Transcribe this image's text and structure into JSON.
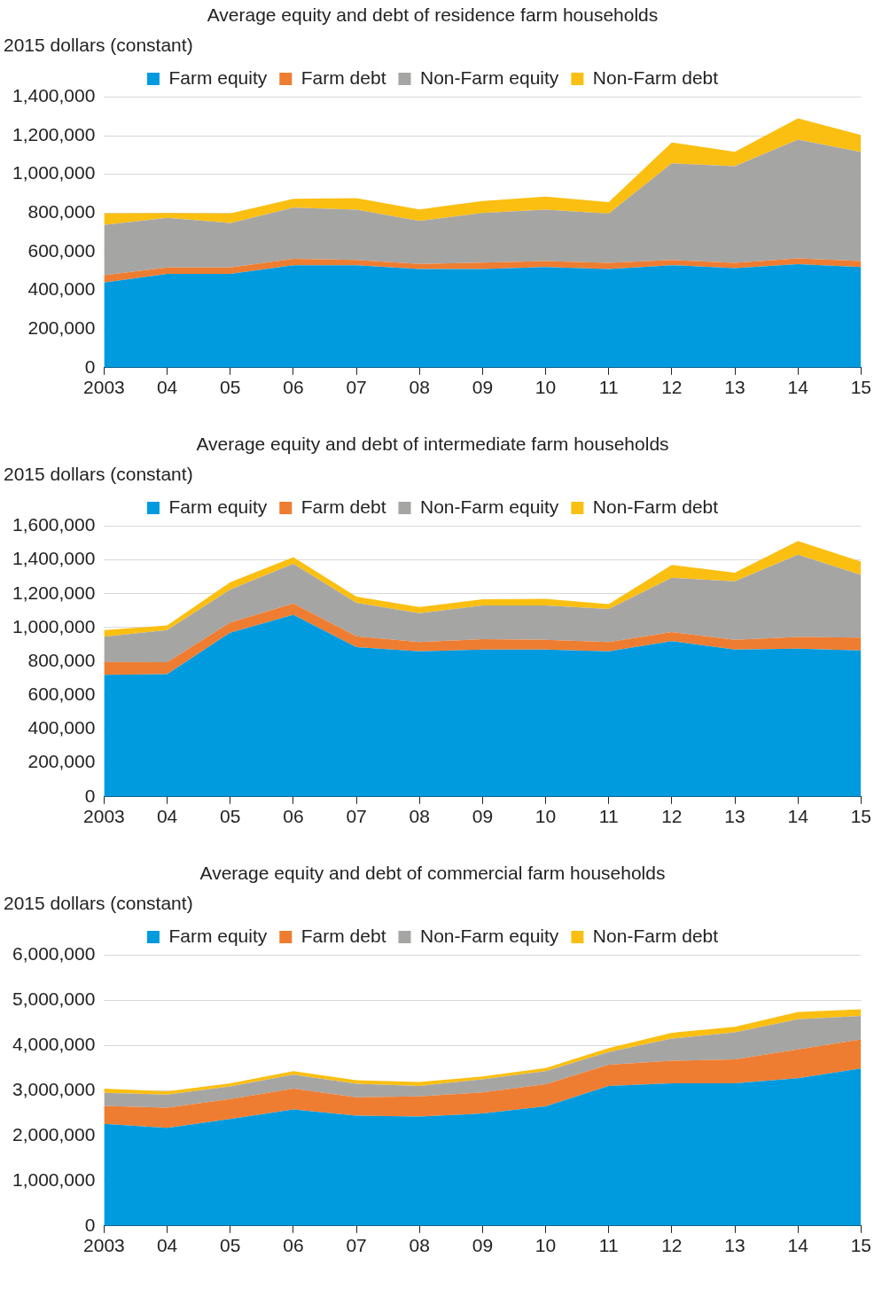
{
  "chart_data": [
    {
      "type": "area",
      "title": "Average equity and debt of residence farm households",
      "ylabel": "2015 dollars (constant)",
      "stacked": true,
      "legend": "top",
      "grid": "y",
      "categories": [
        "2003",
        "04",
        "05",
        "06",
        "07",
        "08",
        "09",
        "10",
        "11",
        "12",
        "13",
        "14",
        "15"
      ],
      "ylim": [
        0,
        1400000
      ],
      "yticks": [
        {
          "value": 0,
          "label": "0"
        },
        {
          "value": 200000,
          "label": "200,000"
        },
        {
          "value": 400000,
          "label": "400,000"
        },
        {
          "value": 600000,
          "label": "600,000"
        },
        {
          "value": 800000,
          "label": "800,000"
        },
        {
          "value": 1000000,
          "label": "1,000,000"
        },
        {
          "value": 1200000,
          "label": "1,200,000"
        },
        {
          "value": 1400000,
          "label": "1,400,000"
        }
      ],
      "series": [
        {
          "name": "Farm equity",
          "color": "#009ade",
          "values": [
            440000,
            485000,
            485000,
            530000,
            530000,
            510000,
            510000,
            520000,
            510000,
            530000,
            515000,
            535000,
            520000
          ]
        },
        {
          "name": "Farm debt",
          "color": "#ee7d31",
          "values": [
            38000,
            33000,
            33000,
            33000,
            27000,
            27000,
            33000,
            32000,
            32000,
            27000,
            27000,
            30000,
            32000
          ]
        },
        {
          "name": "Non-Farm equity",
          "color": "#a5a5a4",
          "values": [
            260000,
            257000,
            230000,
            265000,
            260000,
            222000,
            257000,
            265000,
            255000,
            500000,
            500000,
            615000,
            563000
          ]
        },
        {
          "name": "Non-Farm debt",
          "color": "#fbbf12",
          "values": [
            60000,
            25000,
            50000,
            46000,
            60000,
            60000,
            62000,
            68000,
            59000,
            108000,
            75000,
            109000,
            89000
          ]
        }
      ]
    },
    {
      "type": "area",
      "title": "Average equity and debt of intermediate farm households",
      "ylabel": "2015 dollars (constant)",
      "stacked": true,
      "legend": "top",
      "grid": "y",
      "categories": [
        "2003",
        "04",
        "05",
        "06",
        "07",
        "08",
        "09",
        "10",
        "11",
        "12",
        "13",
        "14",
        "15"
      ],
      "ylim": [
        0,
        1600000
      ],
      "yticks": [
        {
          "value": 0,
          "label": "0"
        },
        {
          "value": 200000,
          "label": "200,000"
        },
        {
          "value": 400000,
          "label": "400,000"
        },
        {
          "value": 600000,
          "label": "600,000"
        },
        {
          "value": 800000,
          "label": "800,000"
        },
        {
          "value": 1000000,
          "label": "1,000,000"
        },
        {
          "value": 1200000,
          "label": "1,200,000"
        },
        {
          "value": 1400000,
          "label": "1,400,000"
        },
        {
          "value": 1600000,
          "label": "1,600,000"
        }
      ],
      "series": [
        {
          "name": "Farm equity",
          "color": "#009ade",
          "values": [
            720000,
            725000,
            970000,
            1075000,
            885000,
            860000,
            870000,
            870000,
            860000,
            920000,
            870000,
            875000,
            865000
          ]
        },
        {
          "name": "Farm debt",
          "color": "#ee7d31",
          "values": [
            76000,
            70000,
            60000,
            67000,
            64000,
            55000,
            61000,
            58000,
            55000,
            54000,
            58000,
            70000,
            76000
          ]
        },
        {
          "name": "Non-Farm equity",
          "color": "#a5a5a4",
          "values": [
            150000,
            190000,
            195000,
            235000,
            197000,
            170000,
            200000,
            203000,
            194000,
            320000,
            346000,
            485000,
            370000
          ]
        },
        {
          "name": "Non-Farm debt",
          "color": "#fbbf12",
          "values": [
            39000,
            28000,
            43000,
            39000,
            37000,
            37000,
            36000,
            39000,
            30000,
            76000,
            51000,
            82000,
            79000
          ]
        }
      ]
    },
    {
      "type": "area",
      "title": "Average equity and debt of commercial farm households",
      "ylabel": "2015 dollars (constant)",
      "stacked": true,
      "legend": "top",
      "grid": "y",
      "categories": [
        "2003",
        "04",
        "05",
        "06",
        "07",
        "08",
        "09",
        "10",
        "11",
        "12",
        "13",
        "14",
        "15"
      ],
      "ylim": [
        0,
        6000000
      ],
      "yticks": [
        {
          "value": 0,
          "label": "0"
        },
        {
          "value": 1000000,
          "label": "1,000,000"
        },
        {
          "value": 2000000,
          "label": "2,000,000"
        },
        {
          "value": 3000000,
          "label": "3,000,000"
        },
        {
          "value": 4000000,
          "label": "4,000,000"
        },
        {
          "value": 5000000,
          "label": "5,000,000"
        },
        {
          "value": 6000000,
          "label": "6,000,000"
        }
      ],
      "series": [
        {
          "name": "Farm equity",
          "color": "#009ade",
          "values": [
            2260000,
            2170000,
            2370000,
            2580000,
            2440000,
            2420000,
            2490000,
            2650000,
            3100000,
            3160000,
            3160000,
            3270000,
            3490000
          ]
        },
        {
          "name": "Farm debt",
          "color": "#ee7d31",
          "values": [
            400000,
            450000,
            440000,
            460000,
            410000,
            450000,
            470000,
            490000,
            470000,
            500000,
            530000,
            640000,
            640000
          ]
        },
        {
          "name": "Non-Farm equity",
          "color": "#a5a5a4",
          "values": [
            290000,
            290000,
            280000,
            310000,
            300000,
            230000,
            290000,
            290000,
            280000,
            490000,
            600000,
            670000,
            520000
          ]
        },
        {
          "name": "Non-Farm debt",
          "color": "#fbbf12",
          "values": [
            90000,
            70000,
            70000,
            80000,
            80000,
            90000,
            60000,
            70000,
            90000,
            130000,
            120000,
            160000,
            150000
          ]
        }
      ]
    }
  ]
}
